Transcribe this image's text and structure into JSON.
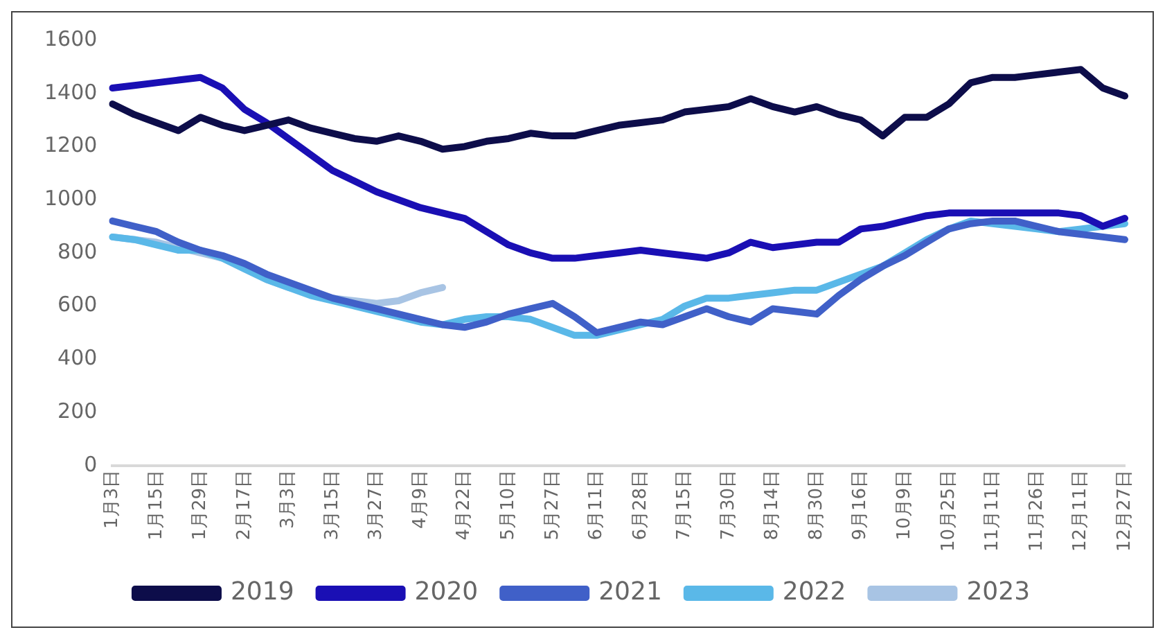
{
  "chart_data": {
    "type": "line",
    "categories": [
      "1月3日",
      null,
      "1月15日",
      null,
      "1月29日",
      null,
      "2月17日",
      null,
      "3月3日",
      null,
      "3月15日",
      null,
      "3月27日",
      null,
      "4月9日",
      null,
      "4月22日",
      null,
      "5月10日",
      null,
      "5月27日",
      null,
      "6月11日",
      null,
      "6月28日",
      null,
      "7月15日",
      null,
      "7月30日",
      null,
      "8月14日",
      null,
      "8月30日",
      null,
      "9月16日",
      null,
      "10月9日",
      null,
      "10月25日",
      null,
      "11月11日",
      null,
      "11月26日",
      null,
      "12月11日",
      null,
      "12月27日"
    ],
    "series": [
      {
        "name": "2019",
        "color": "#0d0d4a",
        "values": [
          1360,
          1320,
          1290,
          1260,
          1310,
          1280,
          1260,
          1280,
          1300,
          1270,
          1250,
          1230,
          1220,
          1240,
          1220,
          1190,
          1200,
          1220,
          1230,
          1250,
          1240,
          1240,
          1260,
          1280,
          1290,
          1300,
          1330,
          1340,
          1350,
          1380,
          1350,
          1330,
          1350,
          1320,
          1300,
          1240,
          1310,
          1310,
          1360,
          1440,
          1460,
          1460,
          1470,
          1480,
          1490,
          1420,
          1390
        ]
      },
      {
        "name": "2020",
        "color": "#1a0fb4",
        "values": [
          1420,
          1430,
          1440,
          1450,
          1460,
          1420,
          1340,
          1290,
          1230,
          1170,
          1110,
          1070,
          1030,
          1000,
          970,
          950,
          930,
          880,
          830,
          800,
          780,
          780,
          790,
          800,
          810,
          800,
          790,
          780,
          800,
          840,
          820,
          830,
          840,
          840,
          890,
          900,
          920,
          940,
          950,
          950,
          950,
          950,
          950,
          950,
          940,
          900,
          930
        ]
      },
      {
        "name": "2021",
        "color": "#4060c8",
        "values": [
          920,
          900,
          880,
          840,
          810,
          790,
          760,
          720,
          690,
          660,
          630,
          610,
          590,
          570,
          550,
          530,
          520,
          540,
          570,
          590,
          610,
          560,
          500,
          520,
          540,
          530,
          560,
          590,
          560,
          540,
          590,
          580,
          570,
          640,
          700,
          750,
          790,
          840,
          890,
          910,
          920,
          920,
          900,
          880,
          870,
          860,
          850
        ]
      },
      {
        "name": "2022",
        "color": "#5ab8e8",
        "values": [
          860,
          850,
          830,
          810,
          810,
          780,
          740,
          700,
          670,
          640,
          620,
          600,
          580,
          560,
          540,
          530,
          550,
          560,
          560,
          550,
          520,
          490,
          490,
          510,
          530,
          550,
          600,
          630,
          630,
          640,
          650,
          660,
          660,
          690,
          720,
          750,
          800,
          850,
          890,
          920,
          910,
          900,
          890,
          880,
          890,
          900,
          910
        ]
      },
      {
        "name": "2023",
        "color": "#a8c4e4",
        "values": [
          860,
          850,
          840,
          820,
          800,
          780,
          740,
          700,
          670,
          650,
          630,
          620,
          610,
          620,
          650,
          670,
          null,
          null,
          null,
          null,
          null,
          null,
          null,
          null,
          null,
          null,
          null,
          null,
          null,
          null,
          null,
          null,
          null,
          null,
          null,
          null,
          null,
          null,
          null,
          null,
          null,
          null,
          null,
          null,
          null,
          null,
          null
        ]
      }
    ],
    "ylim": [
      0,
      1600
    ],
    "yticks": [
      0,
      200,
      400,
      600,
      800,
      1000,
      1200,
      1400,
      1600
    ],
    "grid": false,
    "legend": "bottom",
    "marker": "none",
    "line_style": "solid"
  }
}
